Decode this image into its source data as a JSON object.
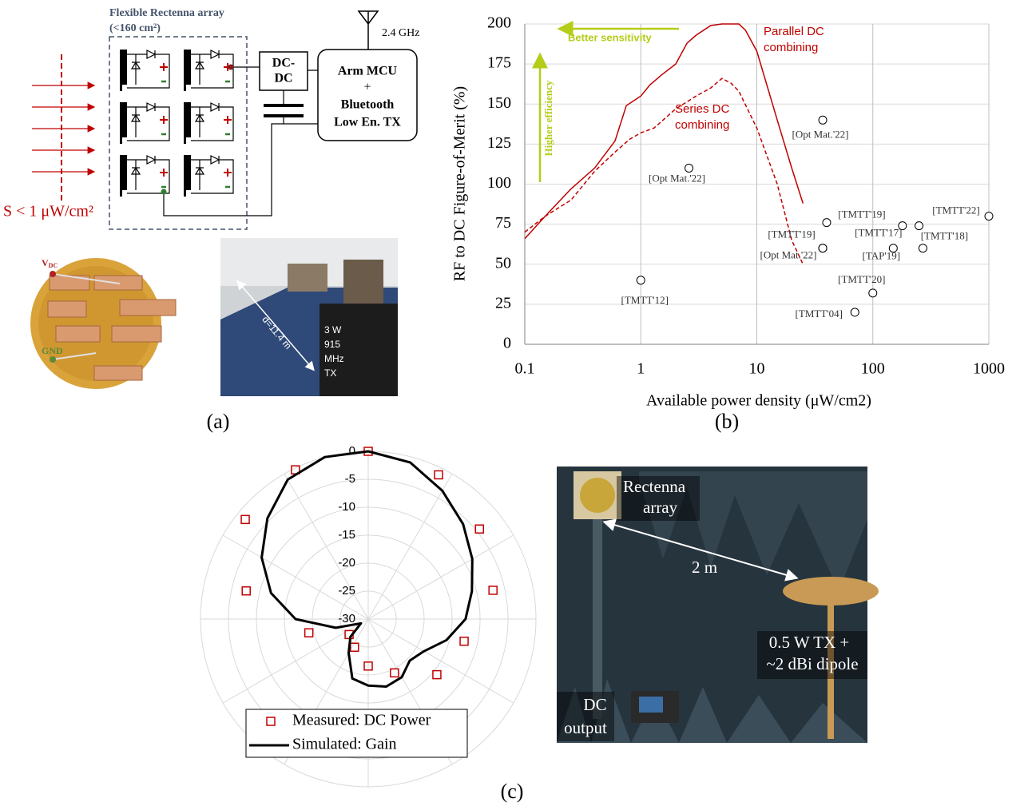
{
  "figure_a": {
    "title": "Flexible Rectenna array",
    "area": "(<160 cm²)",
    "antenna": "2.4 GHz",
    "converter": [
      "DC-",
      "DC"
    ],
    "mcu": [
      "Arm MCU",
      "+",
      "Bluetooth",
      "Low En. TX"
    ],
    "incident": "S < 1 μW/cm²",
    "vdc": [
      "V",
      "DC"
    ],
    "gnd": "GND",
    "room": {
      "distance": "d=11.4 m",
      "tx": [
        "3 W",
        "915",
        "MHz",
        "TX"
      ]
    }
  },
  "figure_c": {
    "array": [
      "Rectenna",
      "array"
    ],
    "distance": "2 m",
    "tx": [
      "0.5 W TX +",
      "~2 dBi dipole"
    ],
    "output": [
      "DC",
      "output"
    ]
  },
  "panel_labels": [
    "(a)",
    "(b)",
    "(c)"
  ],
  "chart_data": [
    {
      "type": "line",
      "x_label": "Available power density (μW/cm2)",
      "y_label": "RF to DC Figure-of-Merit (%)",
      "log_x": true,
      "xlim": [
        0.1,
        1000
      ],
      "xticks": [
        0.1,
        1,
        10,
        100,
        1000
      ],
      "ylim": [
        0,
        200
      ],
      "yticks": [
        0,
        25,
        50,
        75,
        100,
        125,
        150,
        175,
        200
      ],
      "grid": true,
      "series": [
        {
          "name": "Parallel DC combining",
          "color": "#c00000",
          "dash": false,
          "x": [
            0.1,
            0.15,
            0.25,
            0.4,
            0.6,
            0.75,
            1,
            1.2,
            1.5,
            2,
            2.5,
            3,
            4,
            5,
            7,
            8,
            10,
            15,
            20,
            25
          ],
          "values": [
            66,
            80,
            97,
            110,
            127,
            149,
            155,
            162,
            168,
            175,
            188,
            193,
            199,
            200,
            200,
            196,
            183,
            140,
            110,
            88
          ]
        },
        {
          "name": "Series DC combining",
          "color": "#c00000",
          "dash": true,
          "x": [
            0.1,
            0.15,
            0.25,
            0.4,
            0.6,
            0.8,
            1,
            1.3,
            2,
            3,
            4,
            5,
            6,
            7,
            10,
            15,
            20,
            25
          ],
          "values": [
            70,
            80,
            90,
            108,
            120,
            128,
            132,
            135,
            147,
            155,
            160,
            166,
            163,
            158,
            135,
            100,
            65,
            50
          ]
        }
      ],
      "points": [
        {
          "x": 1,
          "y": 40,
          "label": "[TMTT'12]"
        },
        {
          "x": 2.6,
          "y": 110,
          "label": "[Opt Mat.'22]"
        },
        {
          "x": 37,
          "y": 140,
          "label": "[Opt Mat.'22]"
        },
        {
          "x": 40,
          "y": 76,
          "label": "[TMTT'19]"
        },
        {
          "x": 37,
          "y": 60,
          "label": "[TMTT'19]"
        },
        {
          "x": 37,
          "y": 60,
          "label": "[Opt Mat.'22]"
        },
        {
          "x": 180,
          "y": 74,
          "label": "[TMTT'17]"
        },
        {
          "x": 250,
          "y": 74
        },
        {
          "x": 150,
          "y": 60,
          "label": "[TAP'19]"
        },
        {
          "x": 270,
          "y": 60,
          "label": "[TMTT'18]"
        },
        {
          "x": 1000,
          "y": 80,
          "label": "[TMTT'22]"
        },
        {
          "x": 100,
          "y": 32,
          "label": "[TMTT'20]"
        },
        {
          "x": 70,
          "y": 20,
          "label": "[TMTT'04]"
        }
      ],
      "annotations": [
        {
          "text": "Better sensitivity",
          "color": "#b5cc18"
        },
        {
          "text": "Higher efficiency",
          "color": "#b5cc18"
        }
      ]
    },
    {
      "type": "polar",
      "rlim": [
        -30,
        0
      ],
      "rticks": [
        0,
        -5,
        -10,
        -15,
        -20,
        -25,
        -30
      ],
      "series": [
        {
          "name": "Measured: DC Power",
          "marker": "square",
          "color": "#c00000",
          "theta": [
            0,
            26,
            51,
            77,
            103,
            129,
            154,
            180,
            206,
            231,
            257,
            283,
            309,
            334
          ],
          "values": [
            0,
            -1.3,
            -4.4,
            -7.1,
            -12.4,
            -14.2,
            -19.3,
            -21.6,
            -24.4,
            -25.6,
            -19.1,
            -7.6,
            -1.7,
            -0.3
          ]
        },
        {
          "name": "Simulated: Gain",
          "marker": "line",
          "color": "#000000",
          "theta": [
            0,
            15,
            30,
            45,
            60,
            75,
            90,
            105,
            120,
            135,
            150,
            165,
            180,
            195,
            210,
            225,
            240,
            255,
            270,
            285,
            300,
            315,
            330,
            345
          ],
          "values": [
            0,
            -1,
            -3.5,
            -6,
            -8.5,
            -10.8,
            -12.6,
            -15.5,
            -18.5,
            -19.5,
            -18,
            -17.5,
            -18.1,
            -19,
            -23,
            -25.5,
            -28.5,
            -24,
            -17,
            -12,
            -8,
            -4.5,
            -1.2,
            0
          ]
        }
      ]
    }
  ]
}
